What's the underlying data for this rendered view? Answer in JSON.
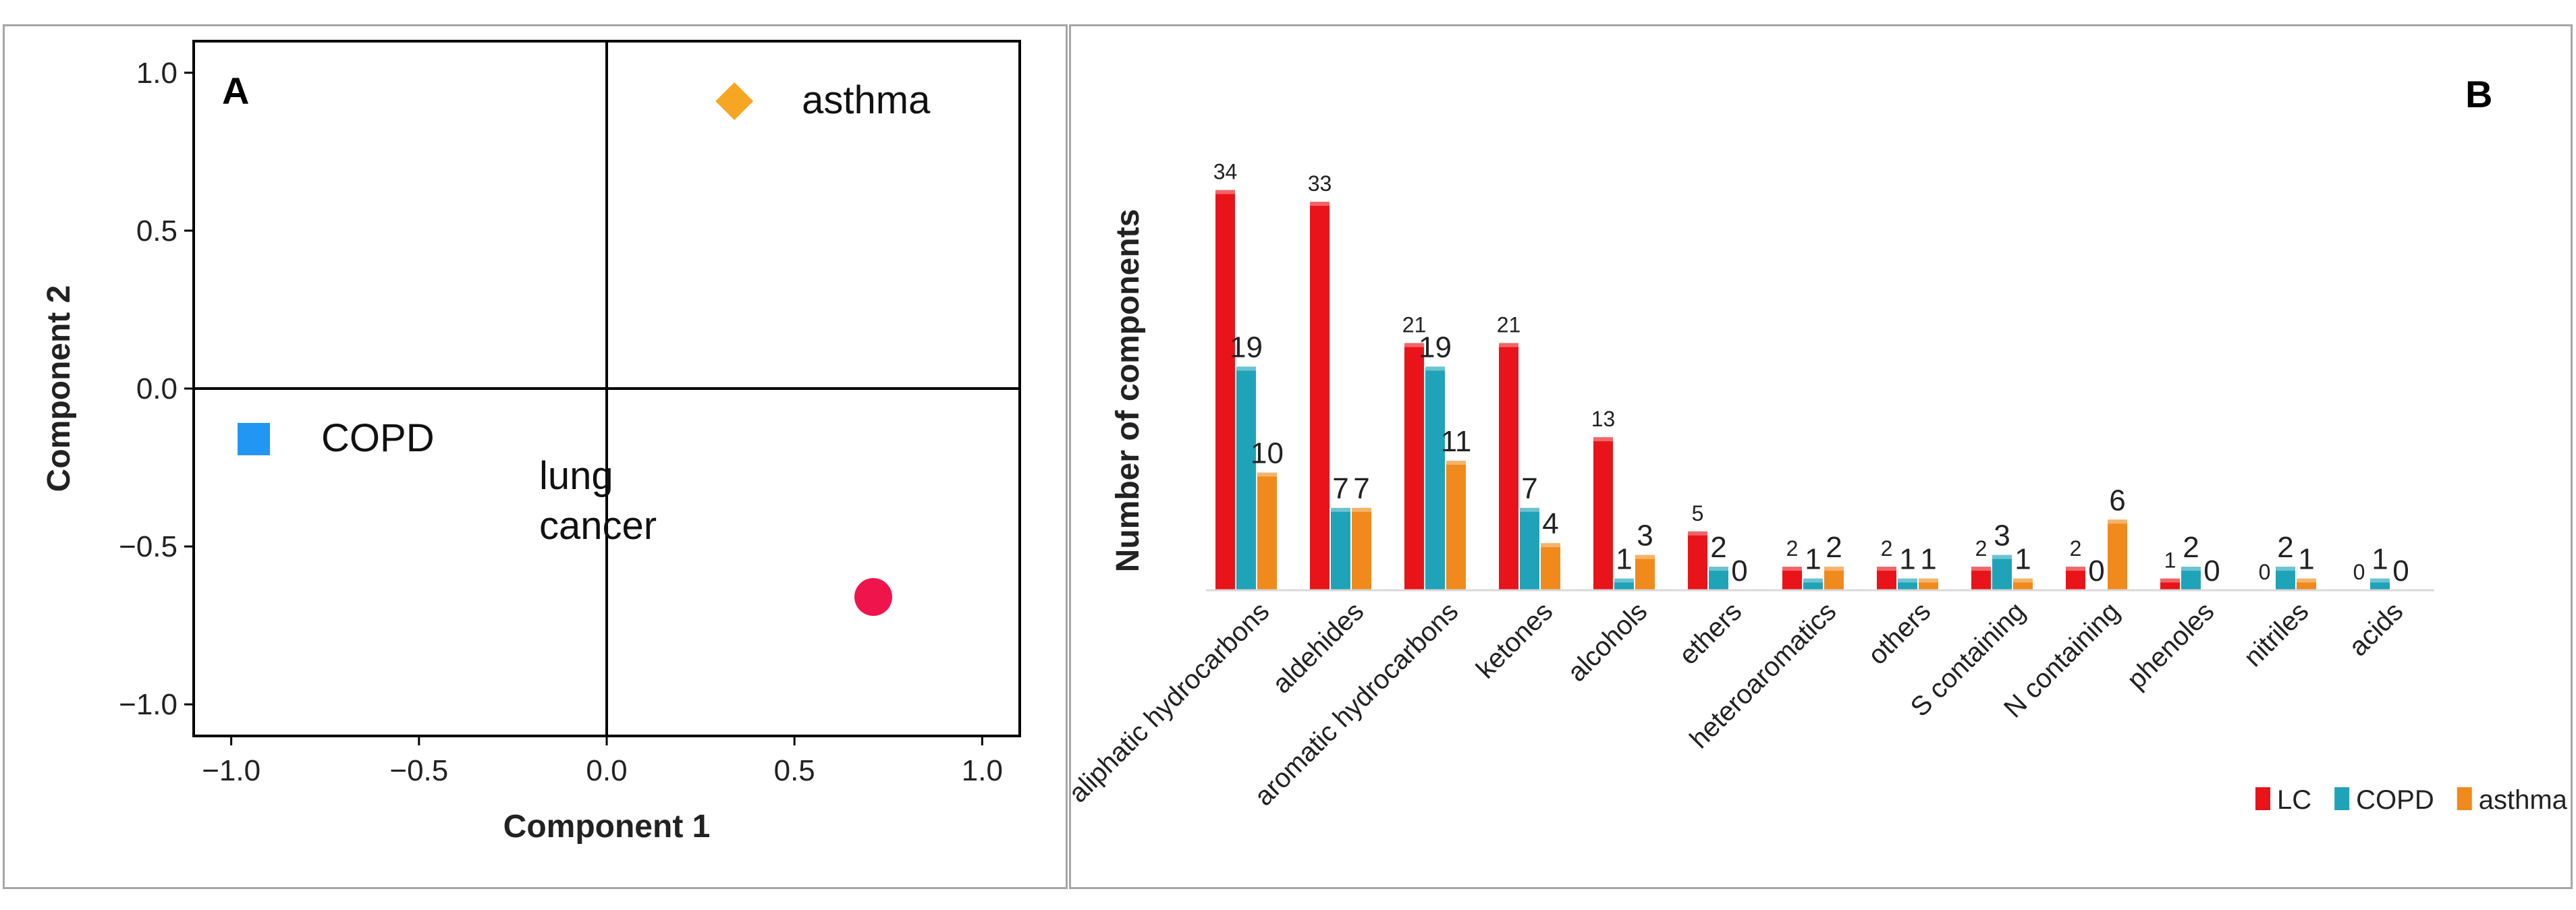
{
  "chart_data": [
    {
      "type": "scatter",
      "panel_label": "A",
      "xlabel": "Component 1",
      "ylabel": "Component 2",
      "xlim": [
        -1.1,
        1.1
      ],
      "ylim": [
        -1.1,
        1.1
      ],
      "xticks": [
        "-1.0",
        "-0.5",
        "0.0",
        "0.5",
        "1.0"
      ],
      "yticks": [
        "1.0",
        "0.5",
        "0.0",
        "-0.5",
        "-1.0"
      ],
      "points": [
        {
          "label": "asthma",
          "x": 0.34,
          "y": 0.91,
          "marker": "diamond",
          "color": "#F5A623"
        },
        {
          "label": "COPD",
          "x": -0.94,
          "y": -0.16,
          "marker": "square",
          "color": "#2196F3"
        },
        {
          "label": "lung cancer",
          "label_lines": [
            "lung",
            "cancer"
          ],
          "x": 0.71,
          "y": -0.66,
          "marker": "circle",
          "color": "#F0144C"
        }
      ]
    },
    {
      "type": "bar",
      "panel_label": "B",
      "ylabel": "Number of components",
      "ylim": [
        0,
        40
      ],
      "categories": [
        "aliphatic hydrocarbons",
        "aldehides",
        "aromatic hydrocarbons",
        "ketones",
        "alcohols",
        "ethers",
        "heteroaromatics",
        "others",
        "S containing",
        "N containing",
        "phenoles",
        "nitriles",
        "acids"
      ],
      "series": [
        {
          "name": "LC",
          "color": "#E8141A",
          "values": [
            34,
            33,
            21,
            21,
            13,
            5,
            2,
            2,
            2,
            2,
            1,
            0,
            0
          ]
        },
        {
          "name": "COPD",
          "color": "#1FA3B8",
          "values": [
            19,
            7,
            19,
            7,
            1,
            2,
            1,
            1,
            3,
            0,
            2,
            2,
            1
          ]
        },
        {
          "name": "asthma",
          "color": "#F08A1C",
          "values": [
            10,
            7,
            11,
            4,
            3,
            0,
            2,
            1,
            1,
            6,
            0,
            1,
            0
          ]
        }
      ],
      "legend_position": "bottom-right"
    }
  ]
}
